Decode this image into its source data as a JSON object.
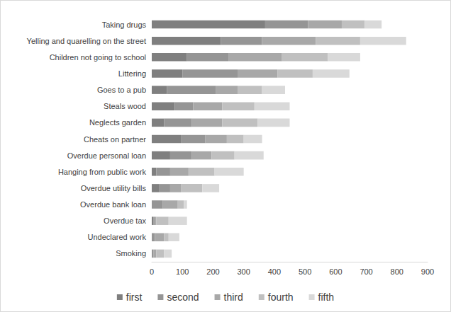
{
  "chart_data": {
    "type": "bar",
    "orientation": "horizontal",
    "stacked": true,
    "grid": false,
    "legend": "bottom",
    "categories": [
      "Taking drugs",
      "Yelling and quarelling on the street",
      "Children not going to school",
      "Littering",
      "Goes to a pub",
      "Steals wood",
      "Neglects garden",
      "Cheats on partner",
      "Overdue personal loan",
      "Hanging from public work",
      "Overdue utility bills",
      "Overdue bank loan",
      "Overdue tax",
      "Undeclared work",
      "Smoking"
    ],
    "series": [
      {
        "name": "first",
        "color": "#7f7f7f",
        "values": [
          370,
          225,
          115,
          100,
          50,
          75,
          40,
          95,
          60,
          15,
          25,
          0,
          5,
          0,
          0
        ]
      },
      {
        "name": "second",
        "color": "#959595",
        "values": [
          140,
          135,
          135,
          180,
          160,
          60,
          90,
          80,
          70,
          45,
          35,
          35,
          5,
          10,
          5
        ]
      },
      {
        "name": "third",
        "color": "#a8a8a8",
        "values": [
          110,
          175,
          175,
          130,
          70,
          95,
          100,
          70,
          65,
          60,
          35,
          50,
          5,
          30,
          10
        ]
      },
      {
        "name": "fourth",
        "color": "#c0c0c0",
        "values": [
          75,
          145,
          150,
          115,
          80,
          105,
          115,
          55,
          75,
          85,
          70,
          20,
          40,
          15,
          25
        ]
      },
      {
        "name": "fifth",
        "color": "#d9d9d9",
        "values": [
          55,
          150,
          105,
          120,
          75,
          115,
          105,
          60,
          95,
          95,
          55,
          10,
          60,
          35,
          25
        ]
      }
    ],
    "xlim": [
      0,
      900
    ],
    "xticks": [
      0,
      100,
      200,
      300,
      400,
      500,
      600,
      700,
      800,
      900
    ]
  }
}
